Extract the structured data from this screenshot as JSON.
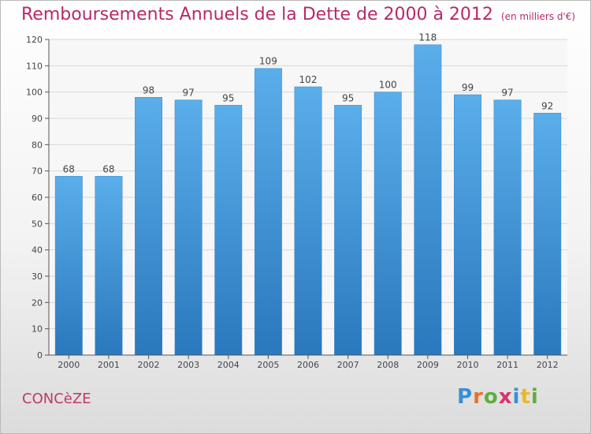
{
  "chart_data": {
    "type": "bar",
    "title": "Remboursements Annuels de la Dette de 2000 à 2012",
    "unit": "(en milliers d'€)",
    "categories": [
      "2000",
      "2001",
      "2002",
      "2003",
      "2004",
      "2005",
      "2006",
      "2007",
      "2008",
      "2009",
      "2010",
      "2011",
      "2012"
    ],
    "values": [
      68,
      68,
      98,
      97,
      95,
      109,
      102,
      95,
      100,
      118,
      99,
      97,
      92
    ],
    "ylim": [
      0,
      120
    ],
    "yticks": [
      0,
      10,
      20,
      30,
      40,
      50,
      60,
      70,
      80,
      90,
      100,
      110,
      120
    ],
    "grid": true,
    "bar_color": "#4a9fe0"
  },
  "place_name": "CONCèZE",
  "brand": {
    "letters": [
      "P",
      "r",
      "o",
      "x",
      "i",
      "t",
      "i"
    ],
    "colors": [
      "#3a8fd6",
      "#e8732a",
      "#5fae3b",
      "#d6336c",
      "#3a8fd6",
      "#e8b82a",
      "#5fae3b"
    ]
  }
}
